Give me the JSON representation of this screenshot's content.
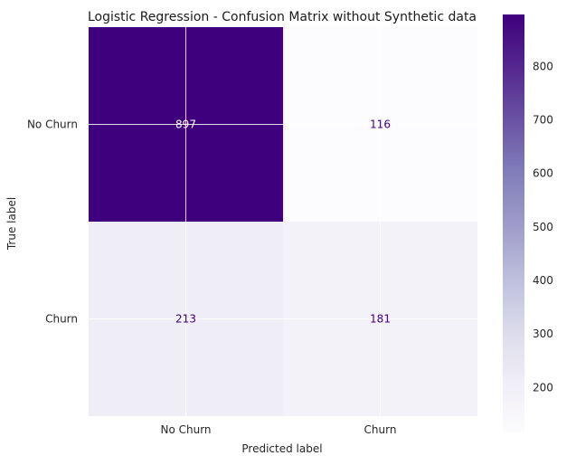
{
  "chart_data": {
    "type": "heatmap",
    "title": "Logistic Regression - Confusion Matrix without Synthetic data",
    "xlabel": "Predicted label",
    "ylabel": "True label",
    "x_categories": [
      "No Churn",
      "Churn"
    ],
    "y_categories": [
      "No Churn",
      "Churn"
    ],
    "matrix": [
      [
        897,
        116
      ],
      [
        213,
        181
      ]
    ],
    "colormap": "Purples",
    "colorbar": {
      "range": [
        116,
        897
      ],
      "ticks": [
        200,
        300,
        400,
        500,
        600,
        700,
        800
      ]
    },
    "grid": true,
    "colors": {
      "low": "#fcfbfd",
      "high": "#3f007d",
      "text_on_dark": "#ffffff",
      "text_on_light": "#3f007d"
    }
  }
}
